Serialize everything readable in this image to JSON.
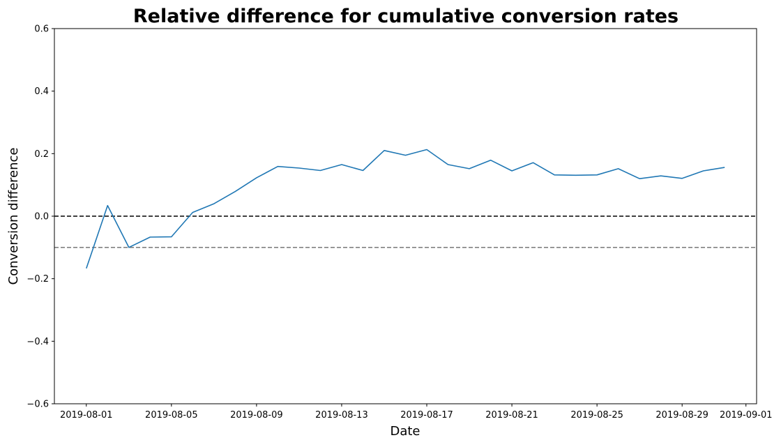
{
  "chart_data": {
    "type": "line",
    "title": "Relative difference for cumulative conversion rates",
    "xlabel": "Date",
    "ylabel": "Conversion difference",
    "ylim": [
      -0.6,
      0.6
    ],
    "xlim": [
      "2019-07-30T12:00",
      "2019-09-01T12:00"
    ],
    "grid": false,
    "yticks": [
      {
        "value": -0.6,
        "label": "−0.6"
      },
      {
        "value": -0.4,
        "label": "−0.4"
      },
      {
        "value": -0.2,
        "label": "−0.2"
      },
      {
        "value": 0.0,
        "label": "0.0"
      },
      {
        "value": 0.2,
        "label": "0.2"
      },
      {
        "value": 0.4,
        "label": "0.4"
      },
      {
        "value": 0.6,
        "label": "0.6"
      }
    ],
    "xticks": [
      "2019-08-01",
      "2019-08-05",
      "2019-08-09",
      "2019-08-13",
      "2019-08-17",
      "2019-08-21",
      "2019-08-25",
      "2019-08-29",
      "2019-09-01"
    ],
    "series": [
      {
        "color": "#1f77b4",
        "x": [
          "2019-08-01",
          "2019-08-02",
          "2019-08-03",
          "2019-08-04",
          "2019-08-05",
          "2019-08-06",
          "2019-08-07",
          "2019-08-08",
          "2019-08-09",
          "2019-08-10",
          "2019-08-11",
          "2019-08-12",
          "2019-08-13",
          "2019-08-14",
          "2019-08-15",
          "2019-08-16",
          "2019-08-17",
          "2019-08-18",
          "2019-08-19",
          "2019-08-20",
          "2019-08-21",
          "2019-08-22",
          "2019-08-23",
          "2019-08-24",
          "2019-08-25",
          "2019-08-26",
          "2019-08-27",
          "2019-08-28",
          "2019-08-29",
          "2019-08-30",
          "2019-08-31"
        ],
        "values": [
          -0.167,
          0.034,
          -0.1,
          -0.067,
          -0.066,
          0.012,
          0.04,
          0.079,
          0.123,
          0.159,
          0.154,
          0.146,
          0.165,
          0.146,
          0.21,
          0.195,
          0.213,
          0.165,
          0.152,
          0.179,
          0.145,
          0.171,
          0.132,
          0.131,
          0.132,
          0.152,
          0.12,
          0.129,
          0.121,
          0.145,
          0.156
        ]
      }
    ],
    "reference_lines": [
      {
        "value": 0.0,
        "color": "#000000",
        "style": "dashed"
      },
      {
        "value": -0.1,
        "color": "#808080",
        "style": "dashed"
      }
    ]
  }
}
